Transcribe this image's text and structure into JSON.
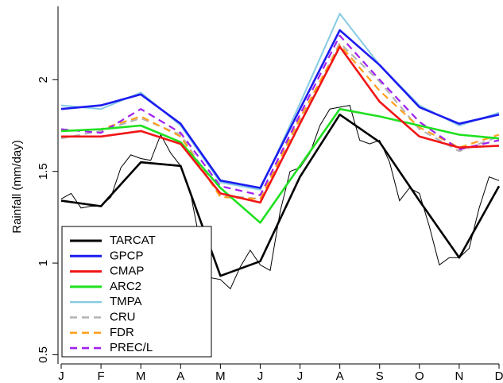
{
  "chart_data": {
    "type": "line",
    "ylabel": "Rainfall (mm/day)",
    "xlabel": "",
    "categories": [
      "J",
      "F",
      "M",
      "A",
      "M",
      "J",
      "J",
      "A",
      "S",
      "O",
      "N",
      "D"
    ],
    "ylim": [
      0.45,
      2.4
    ],
    "yticks": [
      0.5,
      1,
      1.5,
      2
    ],
    "ytick_labels": [
      "0.5",
      "1",
      "1.5",
      "2"
    ],
    "grid": false,
    "legend_position": "bottom-left",
    "series": [
      {
        "name": "TARCAT",
        "color": "#000000",
        "dash": "solid",
        "width": 2.6,
        "values": [
          1.34,
          1.31,
          1.55,
          1.53,
          0.93,
          1.01,
          1.47,
          1.81,
          1.66,
          1.34,
          1.03,
          1.42
        ]
      },
      {
        "name": "GPCP",
        "color": "#1c1cf0",
        "dash": "solid",
        "width": 2.6,
        "values": [
          1.84,
          1.86,
          1.92,
          1.76,
          1.45,
          1.41,
          1.84,
          2.27,
          2.08,
          1.85,
          1.76,
          1.81
        ]
      },
      {
        "name": "CMAP",
        "color": "#f01616",
        "dash": "solid",
        "width": 2.6,
        "values": [
          1.69,
          1.69,
          1.72,
          1.65,
          1.38,
          1.33,
          1.76,
          2.18,
          1.88,
          1.69,
          1.63,
          1.64
        ]
      },
      {
        "name": "ARC2",
        "color": "#20e020",
        "dash": "solid",
        "width": 2.6,
        "values": [
          1.72,
          1.73,
          1.75,
          1.66,
          1.41,
          1.22,
          1.53,
          1.84,
          1.8,
          1.75,
          1.7,
          1.68
        ]
      },
      {
        "name": "TMPA",
        "color": "#87cbe3",
        "dash": "solid",
        "width": 2.0,
        "values": [
          1.86,
          1.84,
          1.93,
          1.75,
          1.44,
          1.4,
          1.87,
          2.36,
          2.08,
          1.86,
          1.75,
          1.82
        ]
      },
      {
        "name": "CRU",
        "color": "#b4b4b4",
        "dash": "dashed",
        "width": 2.2,
        "values": [
          1.68,
          1.72,
          1.79,
          1.7,
          1.37,
          1.35,
          1.77,
          2.2,
          1.99,
          1.73,
          1.61,
          1.69
        ]
      },
      {
        "name": "FDR",
        "color": "#ffa020",
        "dash": "dashed",
        "width": 2.2,
        "values": [
          1.72,
          1.73,
          1.8,
          1.69,
          1.36,
          1.35,
          1.79,
          2.19,
          1.94,
          1.74,
          1.63,
          1.7
        ]
      },
      {
        "name": "PREC/L",
        "color": "#a020f0",
        "dash": "dashed",
        "width": 2.2,
        "values": [
          1.73,
          1.71,
          1.84,
          1.71,
          1.42,
          1.37,
          1.81,
          2.24,
          2.0,
          1.77,
          1.62,
          1.67
        ]
      }
    ],
    "thin_series": {
      "color": "#000000",
      "x": [
        0.0,
        0.25,
        0.5,
        0.75,
        1.0,
        1.25,
        1.5,
        1.75,
        2.0,
        2.25,
        2.5,
        2.75,
        3.0,
        3.25,
        3.5,
        3.75,
        4.0,
        4.25,
        4.5,
        4.75,
        5.0,
        5.25,
        5.5,
        5.75,
        6.0,
        6.25,
        6.5,
        6.75,
        7.0,
        7.25,
        7.5,
        7.75,
        8.0,
        8.25,
        8.5,
        8.75,
        9.0,
        9.25,
        9.5,
        9.75,
        10.0,
        10.25,
        10.5,
        10.75,
        11.0
      ],
      "values": [
        1.35,
        1.38,
        1.3,
        1.31,
        1.31,
        1.36,
        1.52,
        1.59,
        1.57,
        1.56,
        1.7,
        1.6,
        1.53,
        1.38,
        1.1,
        0.92,
        0.91,
        0.86,
        0.98,
        1.07,
        0.99,
        0.96,
        1.28,
        1.5,
        1.52,
        1.6,
        1.75,
        1.84,
        1.85,
        1.86,
        1.67,
        1.65,
        1.67,
        1.55,
        1.34,
        1.41,
        1.38,
        1.2,
        0.99,
        1.03,
        1.03,
        1.08,
        1.3,
        1.47,
        1.45
      ]
    }
  }
}
